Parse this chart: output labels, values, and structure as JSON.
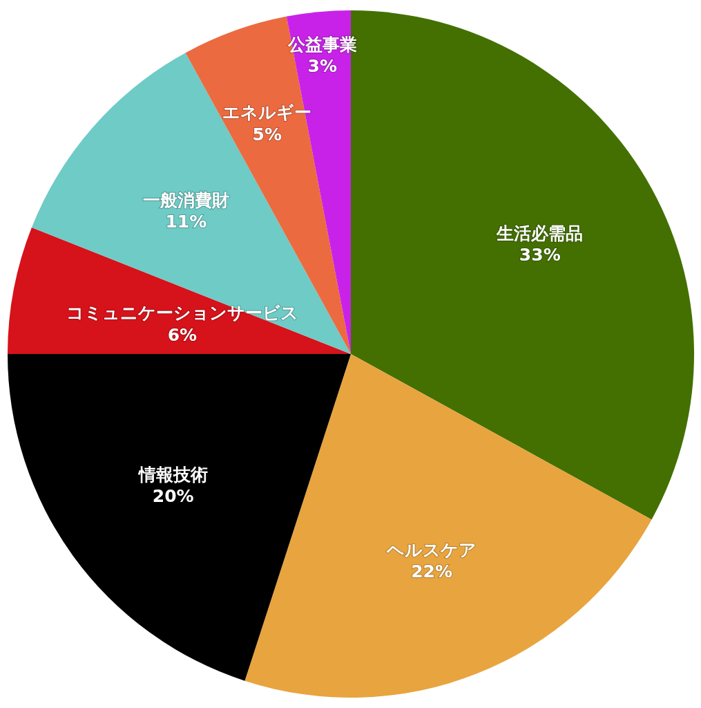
{
  "chart_data": {
    "type": "pie",
    "categories": [
      "生活必需品",
      "ヘルスケア",
      "情報技術",
      "コミュニケーションサービス",
      "一般消費財",
      "エネルギー",
      "公益事業"
    ],
    "values": [
      33,
      22,
      20,
      6,
      11,
      5,
      3
    ],
    "colors": [
      "#437000",
      "#e8a43e",
      "#000000",
      "#d6121a",
      "#6ecbc6",
      "#ec6a40",
      "#c822e8"
    ],
    "value_labels": [
      "33%",
      "22%",
      "20%",
      "6%",
      "11%",
      "5%",
      "3%"
    ]
  }
}
